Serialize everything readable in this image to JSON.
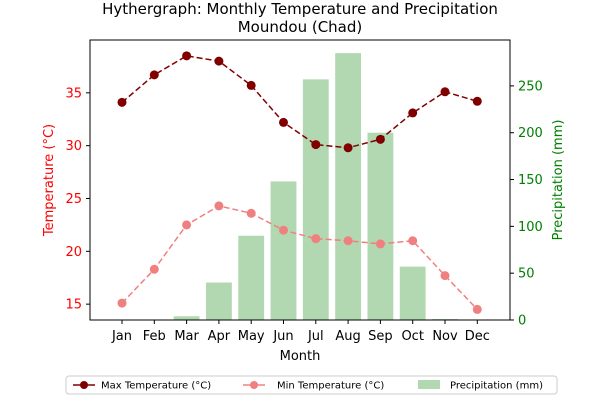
{
  "chart_data": {
    "type": "line+bar",
    "title_line1": "Hythergraph: Monthly Temperature and Precipitation",
    "title_line2": "Moundou (Chad)",
    "xlabel": "Month",
    "ylabel_left": "Temperature (°C)",
    "ylabel_right": "Precipitation (mm)",
    "categories": [
      "Jan",
      "Feb",
      "Mar",
      "Apr",
      "May",
      "Jun",
      "Jul",
      "Aug",
      "Sep",
      "Oct",
      "Nov",
      "Dec"
    ],
    "left_axis": {
      "ylim": [
        13.5,
        40
      ],
      "ticks": [
        15,
        20,
        25,
        30,
        35
      ]
    },
    "right_axis": {
      "ylim": [
        0,
        299
      ],
      "ticks": [
        0,
        50,
        100,
        150,
        200,
        250
      ]
    },
    "series": [
      {
        "name": "Max Temperature (°C)",
        "kind": "line",
        "axis": "left",
        "color": "#800000",
        "marker": "circle",
        "linestyle": "dashed",
        "values": [
          34.1,
          36.7,
          38.5,
          38.0,
          35.7,
          32.2,
          30.1,
          29.8,
          30.6,
          33.1,
          35.1,
          34.2
        ]
      },
      {
        "name": "Min Temperature (°C)",
        "kind": "line",
        "axis": "left",
        "color": "#f08080",
        "marker": "circle",
        "linestyle": "dashed",
        "values": [
          15.1,
          18.3,
          22.5,
          24.3,
          23.6,
          22.0,
          21.2,
          21.0,
          20.7,
          21.0,
          17.7,
          14.5
        ]
      },
      {
        "name": "Precipitation (mm)",
        "kind": "bar",
        "axis": "right",
        "color": "#b2d8b2",
        "values": [
          0,
          0,
          4,
          40,
          90,
          148,
          257,
          285,
          200,
          57,
          1,
          0
        ]
      }
    ],
    "legend_position": "bottom-center",
    "grid": false
  }
}
